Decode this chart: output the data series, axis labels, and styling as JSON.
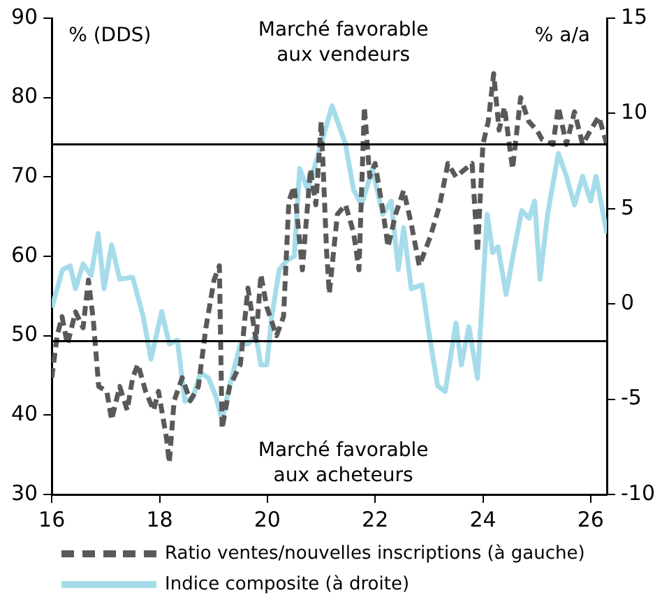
{
  "chart_data": {
    "type": "line",
    "xlim": [
      16,
      26.3
    ],
    "xticks": [
      16,
      18,
      20,
      22,
      24,
      26
    ],
    "ylim": [
      30,
      90
    ],
    "yticks": [
      30,
      40,
      50,
      60,
      70,
      80,
      90
    ],
    "y2lim": [
      -10,
      15
    ],
    "y2ticks": [
      -10,
      -5,
      0,
      5,
      10,
      15
    ],
    "ylabel": "% (DDS)",
    "y2label": "% a/a",
    "grid": false,
    "legend": "bottom",
    "marker": "none",
    "annotations": [
      "Marché favorable\naux vendeurs",
      "Marché favorable\naux acheteurs"
    ],
    "ref_lines": [
      {
        "axis": "y",
        "value": 74.1,
        "color": "#000000"
      },
      {
        "axis": "y",
        "value": 49.3,
        "color": "#000000"
      }
    ],
    "series": [
      {
        "name": "Ratio ventes/nouvelles inscriptions (à gauche)",
        "color": "#595959",
        "line_style": "dashed",
        "axis": "y",
        "x": [
          16.0,
          16.1,
          16.19,
          16.29,
          16.44,
          16.58,
          16.68,
          16.77,
          16.87,
          17.02,
          17.11,
          17.26,
          17.4,
          17.5,
          17.6,
          17.74,
          17.89,
          17.98,
          18.13,
          18.18,
          18.27,
          18.42,
          18.57,
          18.72,
          18.86,
          19.01,
          19.11,
          19.16,
          19.3,
          19.5,
          19.64,
          19.79,
          19.88,
          19.99,
          20.17,
          20.3,
          20.4,
          20.5,
          20.65,
          20.8,
          20.9,
          21.0,
          21.1,
          21.15,
          21.3,
          21.45,
          21.6,
          21.7,
          21.8,
          21.9,
          22.0,
          22.14,
          22.24,
          22.38,
          22.53,
          22.67,
          22.82,
          23.02,
          23.2,
          23.35,
          23.5,
          23.6,
          23.8,
          23.9,
          24.0,
          24.1,
          24.2,
          24.3,
          24.4,
          24.55,
          24.7,
          24.85,
          25.0,
          25.1,
          25.3,
          25.4,
          25.55,
          25.7,
          25.85,
          26.0,
          26.15,
          26.3
        ],
        "values": [
          44.7,
          50,
          52.4,
          48.9,
          53,
          51,
          57,
          52,
          43.6,
          43,
          39.4,
          43.6,
          40.6,
          44.7,
          46.4,
          43,
          40.6,
          43,
          37,
          34,
          41.8,
          44.7,
          41.8,
          43.6,
          51,
          57,
          58.8,
          38.3,
          43.6,
          46.4,
          56,
          49.4,
          57.7,
          53.6,
          50,
          52.4,
          67,
          68.8,
          58.3,
          71,
          66.5,
          77,
          60.5,
          55.3,
          65.3,
          66.5,
          63,
          58.3,
          78.8,
          70,
          71.7,
          65.9,
          61.2,
          65.3,
          68.3,
          64.1,
          58.8,
          62.4,
          66.5,
          71.7,
          70,
          70.6,
          71.7,
          60.5,
          74.1,
          77,
          83,
          75.9,
          78.8,
          71,
          80,
          77,
          75.9,
          74.7,
          74.1,
          78.8,
          74.1,
          78.2,
          74.1,
          75.9,
          77.6,
          74.1
        ]
      },
      {
        "name": "Indice composite (à droite)",
        "color": "#a6dcea",
        "line_style": "solid",
        "axis": "y2",
        "x": [
          16.0,
          16.2,
          16.34,
          16.44,
          16.58,
          16.73,
          16.86,
          16.97,
          17.11,
          17.26,
          17.5,
          17.7,
          17.84,
          18.04,
          18.18,
          18.33,
          18.47,
          18.62,
          18.76,
          18.91,
          19.05,
          19.16,
          19.3,
          19.5,
          19.64,
          19.79,
          19.88,
          19.99,
          20.08,
          20.22,
          20.37,
          20.5,
          20.6,
          20.75,
          20.95,
          21.2,
          21.45,
          21.6,
          21.75,
          21.95,
          22.14,
          22.3,
          22.43,
          22.53,
          22.67,
          22.87,
          23.02,
          23.16,
          23.3,
          23.5,
          23.6,
          23.74,
          23.9,
          24.08,
          24.18,
          24.28,
          24.43,
          24.57,
          24.72,
          24.86,
          24.96,
          25.06,
          25.2,
          25.4,
          25.55,
          25.7,
          25.85,
          26.0,
          26.1,
          26.2,
          26.3
        ],
        "values": [
          -0.2,
          1.8,
          2.0,
          0.8,
          2.1,
          1.5,
          3.7,
          0.8,
          3.1,
          1.3,
          1.4,
          -0.7,
          -2.9,
          -0.4,
          -2.1,
          -1.9,
          -5.1,
          -4.9,
          -3.6,
          -3.9,
          -4.9,
          -6.1,
          -4.3,
          -2.1,
          -2.1,
          -1.7,
          -3.2,
          -3.2,
          -0.7,
          1.8,
          2.3,
          2.5,
          7.1,
          6.0,
          7.9,
          10.4,
          8.4,
          6.0,
          5.2,
          7.1,
          4.7,
          5.4,
          1.8,
          4.0,
          0.8,
          1.0,
          -1.9,
          -4.3,
          -4.6,
          -1.0,
          -3.2,
          -1.2,
          -3.9,
          4.7,
          2.7,
          3.0,
          0.5,
          2.7,
          4.9,
          4.5,
          5.4,
          1.3,
          4.7,
          7.9,
          6.7,
          5.2,
          6.7,
          5.4,
          6.7,
          5.2,
          3.7
        ]
      }
    ]
  }
}
